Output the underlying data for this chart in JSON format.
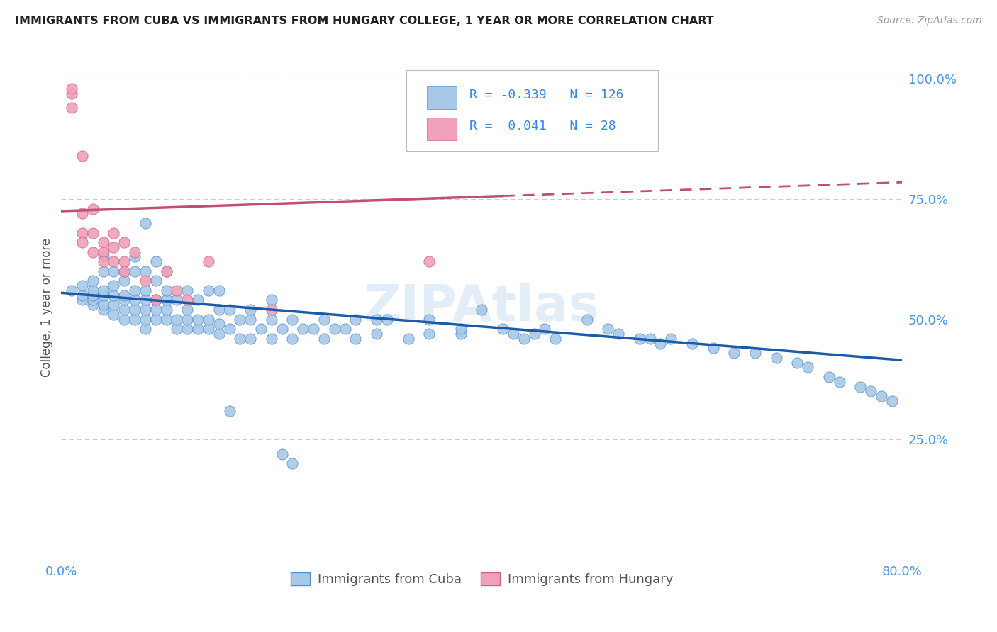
{
  "title": "IMMIGRANTS FROM CUBA VS IMMIGRANTS FROM HUNGARY COLLEGE, 1 YEAR OR MORE CORRELATION CHART",
  "source": "Source: ZipAtlas.com",
  "ylabel": "College, 1 year or more",
  "cuba_R": -0.339,
  "cuba_N": 126,
  "hungary_R": 0.041,
  "hungary_N": 28,
  "legend_label_cuba": "Immigrants from Cuba",
  "legend_label_hungary": "Immigrants from Hungary",
  "cuba_color": "#a8c8e8",
  "cuba_edge_color": "#5090d0",
  "cuba_line_color": "#1a5aaa",
  "hungary_color": "#f0a0b8",
  "hungary_edge_color": "#d06080",
  "hungary_line_color": "#c05070",
  "background_color": "#ffffff",
  "watermark": "ZIPAtlas",
  "xlim": [
    0.0,
    0.8
  ],
  "ylim": [
    0.0,
    1.05
  ],
  "cuba_line_x0": 0.0,
  "cuba_line_y0": 0.555,
  "cuba_line_x1": 0.8,
  "cuba_line_y1": 0.415,
  "hungary_line_x0": 0.0,
  "hungary_line_y0": 0.725,
  "hungary_line_x1": 0.8,
  "hungary_line_y1": 0.785,
  "cuba_scatter_x": [
    0.01,
    0.02,
    0.02,
    0.02,
    0.03,
    0.03,
    0.03,
    0.03,
    0.03,
    0.04,
    0.04,
    0.04,
    0.04,
    0.04,
    0.04,
    0.05,
    0.05,
    0.05,
    0.05,
    0.05,
    0.06,
    0.06,
    0.06,
    0.06,
    0.06,
    0.06,
    0.07,
    0.07,
    0.07,
    0.07,
    0.07,
    0.07,
    0.08,
    0.08,
    0.08,
    0.08,
    0.08,
    0.08,
    0.08,
    0.09,
    0.09,
    0.09,
    0.09,
    0.09,
    0.1,
    0.1,
    0.1,
    0.1,
    0.1,
    0.11,
    0.11,
    0.11,
    0.12,
    0.12,
    0.12,
    0.12,
    0.13,
    0.13,
    0.13,
    0.14,
    0.14,
    0.14,
    0.15,
    0.15,
    0.15,
    0.15,
    0.16,
    0.16,
    0.17,
    0.17,
    0.18,
    0.18,
    0.18,
    0.19,
    0.2,
    0.2,
    0.2,
    0.21,
    0.22,
    0.22,
    0.23,
    0.24,
    0.25,
    0.25,
    0.26,
    0.27,
    0.28,
    0.28,
    0.3,
    0.3,
    0.31,
    0.33,
    0.35,
    0.35,
    0.38,
    0.38,
    0.4,
    0.42,
    0.43,
    0.44,
    0.45,
    0.46,
    0.47,
    0.5,
    0.52,
    0.53,
    0.55,
    0.56,
    0.57,
    0.58,
    0.6,
    0.62,
    0.64,
    0.66,
    0.68,
    0.7,
    0.71,
    0.73,
    0.74,
    0.76,
    0.77,
    0.78,
    0.79,
    0.16,
    0.21,
    0.22
  ],
  "cuba_scatter_y": [
    0.56,
    0.54,
    0.55,
    0.57,
    0.53,
    0.54,
    0.55,
    0.56,
    0.58,
    0.52,
    0.53,
    0.55,
    0.56,
    0.6,
    0.63,
    0.51,
    0.53,
    0.55,
    0.57,
    0.6,
    0.5,
    0.52,
    0.54,
    0.55,
    0.58,
    0.6,
    0.5,
    0.52,
    0.54,
    0.56,
    0.6,
    0.63,
    0.48,
    0.5,
    0.52,
    0.54,
    0.56,
    0.6,
    0.7,
    0.5,
    0.52,
    0.54,
    0.58,
    0.62,
    0.5,
    0.52,
    0.54,
    0.56,
    0.6,
    0.48,
    0.5,
    0.54,
    0.48,
    0.5,
    0.52,
    0.56,
    0.48,
    0.5,
    0.54,
    0.48,
    0.5,
    0.56,
    0.47,
    0.49,
    0.52,
    0.56,
    0.48,
    0.52,
    0.46,
    0.5,
    0.46,
    0.5,
    0.52,
    0.48,
    0.46,
    0.5,
    0.54,
    0.48,
    0.46,
    0.5,
    0.48,
    0.48,
    0.46,
    0.5,
    0.48,
    0.48,
    0.46,
    0.5,
    0.47,
    0.5,
    0.5,
    0.46,
    0.47,
    0.5,
    0.47,
    0.48,
    0.52,
    0.48,
    0.47,
    0.46,
    0.47,
    0.48,
    0.46,
    0.5,
    0.48,
    0.47,
    0.46,
    0.46,
    0.45,
    0.46,
    0.45,
    0.44,
    0.43,
    0.43,
    0.42,
    0.41,
    0.4,
    0.38,
    0.37,
    0.36,
    0.35,
    0.34,
    0.33,
    0.31,
    0.22,
    0.2
  ],
  "hungary_scatter_x": [
    0.01,
    0.01,
    0.01,
    0.02,
    0.02,
    0.02,
    0.02,
    0.03,
    0.03,
    0.03,
    0.04,
    0.04,
    0.04,
    0.05,
    0.05,
    0.05,
    0.06,
    0.06,
    0.06,
    0.07,
    0.08,
    0.09,
    0.1,
    0.11,
    0.12,
    0.14,
    0.2,
    0.35
  ],
  "hungary_scatter_y": [
    0.97,
    0.94,
    0.98,
    0.84,
    0.72,
    0.68,
    0.66,
    0.73,
    0.68,
    0.64,
    0.66,
    0.64,
    0.62,
    0.62,
    0.68,
    0.65,
    0.66,
    0.62,
    0.6,
    0.64,
    0.58,
    0.54,
    0.6,
    0.56,
    0.54,
    0.62,
    0.52,
    0.62
  ]
}
